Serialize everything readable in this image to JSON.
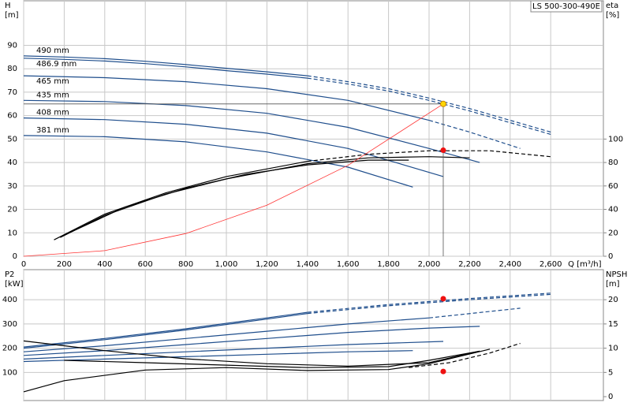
{
  "chart_data": [
    {
      "type": "line",
      "title": "LS 500-300-490E",
      "ylabel": "H",
      "yunit": "[m]",
      "y2label": "eta",
      "y2unit": "[%]",
      "xlabel": "Q [m³/h]",
      "xlim": [
        0,
        2860
      ],
      "xticks": [
        0,
        200,
        400,
        600,
        800,
        {
          "value": 1000,
          "label": "1,000"
        },
        {
          "value": 1200,
          "label": "1,200"
        },
        {
          "value": 1400,
          "label": "1,400"
        },
        {
          "value": 1600,
          "label": "1,600"
        },
        {
          "value": 1800,
          "label": "1,800"
        },
        {
          "value": 2000,
          "label": "2,000"
        },
        {
          "value": 2200,
          "label": "2,200"
        },
        {
          "value": 2400,
          "label": "2,400"
        },
        {
          "value": 2600,
          "label": "2,600"
        }
      ],
      "ylim": [
        0,
        109
      ],
      "yticks": [
        0,
        10,
        20,
        30,
        40,
        50,
        60,
        70,
        80,
        90
      ],
      "y2lim": [
        0,
        218
      ],
      "y2ticks": [
        0,
        20,
        40,
        60,
        80,
        100
      ],
      "grid": true,
      "series": [
        {
          "name": "490 mm",
          "color": "#1f4e8c",
          "x": [
            0,
            200,
            400,
            600,
            800,
            1000,
            1200,
            1400
          ],
          "values": [
            85.5,
            85,
            84.3,
            83.2,
            81.8,
            80.2,
            78.7,
            77
          ]
        },
        {
          "color": "#1f4e8c",
          "dashed": true,
          "x": [
            1400,
            1600,
            1800,
            2000,
            2200,
            2400,
            2600
          ],
          "values": [
            77,
            74.5,
            71.5,
            67.5,
            63,
            58,
            53
          ]
        },
        {
          "name": "486.9 mm",
          "color": "#1f4e8c",
          "x": [
            0,
            200,
            400,
            600,
            800,
            1000,
            1200,
            1400
          ],
          "values": [
            84.5,
            84,
            83.3,
            82.2,
            80.8,
            79.2,
            77.7,
            76
          ]
        },
        {
          "color": "#1f4e8c",
          "dashed": true,
          "x": [
            1400,
            1600,
            1800,
            2000,
            2200,
            2400,
            2600
          ],
          "values": [
            76,
            73.5,
            70.5,
            66.5,
            62,
            57,
            52
          ]
        },
        {
          "name": "465 mm",
          "color": "#1f4e8c",
          "x": [
            0,
            400,
            800,
            1200,
            1600,
            2000
          ],
          "values": [
            77,
            76.2,
            74.5,
            71.5,
            66.5,
            58
          ]
        },
        {
          "color": "#1f4e8c",
          "dashed": true,
          "x": [
            2000,
            2200,
            2450
          ],
          "values": [
            58,
            53,
            46
          ]
        },
        {
          "name": "435 mm",
          "color": "#1f4e8c",
          "x": [
            0,
            400,
            800,
            1200,
            1600,
            2000,
            2250
          ],
          "values": [
            66.5,
            66,
            64.3,
            61,
            55,
            46,
            40
          ]
        },
        {
          "name": "408 mm",
          "color": "#1f4e8c",
          "x": [
            0,
            400,
            800,
            1200,
            1600,
            2070
          ],
          "values": [
            59,
            58.3,
            56.3,
            52.5,
            46,
            34
          ]
        },
        {
          "name": "381 mm",
          "color": "#1f4e8c",
          "x": [
            0,
            400,
            800,
            1200,
            1600,
            1920
          ],
          "values": [
            51.5,
            51,
            48.8,
            44.5,
            38,
            29.5
          ]
        },
        {
          "color": "#000000",
          "axis": "y2",
          "x": [
            150,
            400,
            700,
            1000,
            1400
          ],
          "values": [
            14,
            36,
            54,
            68,
            81
          ]
        },
        {
          "color": "#000000",
          "axis": "y2",
          "dashed": true,
          "x": [
            1400,
            1700,
            2000,
            2300,
            2600
          ],
          "values": [
            81,
            87,
            90,
            90,
            85
          ]
        },
        {
          "color": "#000000",
          "axis": "y2",
          "x": [
            180,
            400,
            700,
            1000,
            1400,
            1700,
            2000,
            2200
          ],
          "values": [
            16,
            35,
            53,
            66,
            79,
            84,
            85,
            84
          ]
        },
        {
          "color": "#000000",
          "axis": "y2",
          "x": [
            200,
            500,
            800,
            1100,
            1400,
            1700,
            1900
          ],
          "values": [
            18,
            42,
            58,
            70,
            78,
            82,
            82
          ]
        },
        {
          "color": "#ff3333",
          "x": [
            0,
            400,
            800,
            1200,
            1600,
            2070
          ],
          "values": [
            0,
            2.4,
            9.7,
            21.8,
            38.8,
            65
          ]
        }
      ],
      "points": [
        {
          "x": 2070,
          "value": 65,
          "color": "#ffd700",
          "guides": true
        },
        {
          "x": 2070,
          "value": 90.5,
          "color": "#ee1111",
          "axis": "y2"
        }
      ]
    },
    {
      "type": "line",
      "ylabel": "P2",
      "yunit": "[kW]",
      "y2label": "NPSH",
      "y2unit": "[m]",
      "xlim": [
        0,
        2860
      ],
      "ylim": [
        -16,
        524
      ],
      "yticks": [
        100,
        200,
        300,
        400
      ],
      "y2lim": [
        -0.8,
        26.2
      ],
      "y2ticks": [
        0,
        5,
        10,
        15,
        20
      ],
      "grid": true,
      "series": [
        {
          "color": "#1f4e8c",
          "x": [
            0,
            400,
            800,
            1200,
            1400
          ],
          "values": [
            205,
            240,
            280,
            325,
            348
          ]
        },
        {
          "color": "#1f4e8c",
          "dashed": true,
          "x": [
            1400,
            1800,
            2200,
            2600
          ],
          "values": [
            348,
            380,
            405,
            427
          ]
        },
        {
          "color": "#1f4e8c",
          "x": [
            0,
            400,
            800,
            1200,
            1400
          ],
          "values": [
            200,
            235,
            275,
            320,
            343
          ]
        },
        {
          "color": "#1f4e8c",
          "dashed": true,
          "x": [
            1400,
            1800,
            2200,
            2600
          ],
          "values": [
            343,
            375,
            400,
            422
          ]
        },
        {
          "color": "#1f4e8c",
          "x": [
            0,
            400,
            800,
            1200,
            1600,
            2000
          ],
          "values": [
            185,
            210,
            240,
            270,
            300,
            325
          ]
        },
        {
          "color": "#1f4e8c",
          "dashed": true,
          "x": [
            2000,
            2450
          ],
          "values": [
            325,
            365
          ]
        },
        {
          "color": "#1f4e8c",
          "x": [
            0,
            400,
            800,
            1200,
            1600,
            2000,
            2250
          ],
          "values": [
            170,
            190,
            215,
            240,
            265,
            283,
            290
          ]
        },
        {
          "color": "#1f4e8c",
          "x": [
            0,
            400,
            800,
            1200,
            1600,
            2070
          ],
          "values": [
            155,
            170,
            185,
            200,
            215,
            228
          ]
        },
        {
          "color": "#1f4e8c",
          "x": [
            0,
            400,
            800,
            1200,
            1600,
            1920
          ],
          "values": [
            145,
            155,
            165,
            175,
            185,
            190
          ]
        },
        {
          "color": "#000000",
          "axis": "y2",
          "x": [
            0,
            200,
            600,
            1000,
            1400,
            1800,
            2000,
            2300
          ],
          "values": [
            1,
            3.3,
            5.5,
            6,
            5.4,
            5.6,
            6.8,
            9.8
          ]
        },
        {
          "color": "#000000",
          "axis": "y2",
          "x": [
            0,
            400,
            800,
            1200,
            1600,
            2000,
            2250
          ],
          "values": [
            11.5,
            9.5,
            7.8,
            6.8,
            6.3,
            7,
            9.4
          ]
        },
        {
          "color": "#000000",
          "axis": "y2",
          "x": [
            200,
            600,
            1000,
            1400,
            1800,
            2000,
            2250
          ],
          "values": [
            7.5,
            7,
            6.5,
            6,
            6.2,
            7.5,
            9.4
          ]
        },
        {
          "color": "#000000",
          "axis": "y2",
          "dashed": true,
          "x": [
            1900,
            2100,
            2300,
            2450
          ],
          "values": [
            6,
            7,
            9,
            11
          ]
        }
      ],
      "points": [
        {
          "x": 2070,
          "value": 404,
          "color": "#ee1111"
        },
        {
          "x": 2070,
          "value": 5.2,
          "color": "#ee1111",
          "axis": "y2"
        }
      ]
    }
  ]
}
